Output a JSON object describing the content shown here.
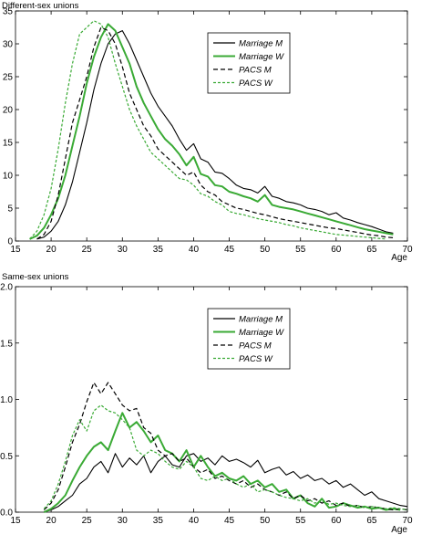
{
  "chart_data": [
    {
      "type": "line",
      "title": "Different-sex unions",
      "xlabel": "Age",
      "ylabel": "",
      "xlim": [
        15,
        70
      ],
      "ylim": [
        0,
        35
      ],
      "xticks": [
        15,
        20,
        25,
        30,
        35,
        40,
        45,
        50,
        55,
        60,
        65,
        70
      ],
      "yticks": [
        0,
        5,
        10,
        15,
        20,
        25,
        30,
        35
      ],
      "grid": false,
      "legend_position": "top-right",
      "series": [
        {
          "name": "Marriage M",
          "color": "#000000",
          "dash": "solid",
          "x": [
            18,
            19,
            20,
            21,
            22,
            23,
            24,
            25,
            26,
            27,
            28,
            29,
            30,
            31,
            32,
            33,
            34,
            35,
            36,
            37,
            38,
            39,
            40,
            41,
            42,
            43,
            44,
            45,
            46,
            47,
            48,
            49,
            50,
            51,
            52,
            53,
            54,
            55,
            56,
            57,
            58,
            59,
            60,
            61,
            62,
            63,
            64,
            65,
            66,
            67,
            68
          ],
          "y": [
            0.3,
            0.6,
            1.5,
            3.0,
            5.5,
            9.0,
            13.5,
            18.0,
            23.0,
            27.0,
            30.0,
            31.5,
            32.0,
            30.0,
            27.5,
            25.0,
            22.5,
            20.5,
            19.0,
            17.5,
            15.5,
            13.8,
            14.8,
            12.5,
            12.0,
            10.5,
            10.3,
            9.5,
            8.5,
            8.0,
            7.8,
            7.3,
            8.3,
            6.8,
            6.5,
            6.0,
            5.8,
            5.5,
            5.0,
            4.8,
            4.5,
            4.0,
            4.3,
            3.5,
            3.2,
            2.8,
            2.5,
            2.2,
            1.8,
            1.4,
            1.2
          ]
        },
        {
          "name": "Marriage W",
          "color": "#3aaa35",
          "dash": "solid",
          "x": [
            17,
            18,
            19,
            20,
            21,
            22,
            23,
            24,
            25,
            26,
            27,
            28,
            29,
            30,
            31,
            32,
            33,
            34,
            35,
            36,
            37,
            38,
            39,
            40,
            41,
            42,
            43,
            44,
            45,
            46,
            47,
            48,
            49,
            50,
            51,
            52,
            53,
            54,
            55,
            56,
            57,
            58,
            59,
            60,
            61,
            62,
            63,
            64,
            65,
            66,
            67,
            68
          ],
          "y": [
            0.3,
            0.8,
            2.0,
            4.0,
            6.5,
            10.0,
            14.5,
            19.0,
            24.0,
            28.0,
            31.0,
            33.0,
            32.0,
            29.5,
            27.0,
            23.5,
            21.0,
            19.0,
            17.0,
            15.5,
            14.5,
            13.2,
            11.5,
            12.8,
            10.2,
            9.8,
            8.5,
            8.3,
            7.5,
            7.2,
            6.8,
            6.5,
            6.0,
            7.0,
            5.5,
            5.2,
            5.0,
            4.8,
            4.5,
            4.2,
            3.9,
            3.6,
            3.3,
            3.0,
            2.7,
            2.4,
            2.1,
            1.8,
            1.6,
            1.4,
            1.2,
            1.0
          ]
        },
        {
          "name": "PACS M",
          "color": "#000000",
          "dash": "dashed",
          "x": [
            18,
            19,
            20,
            21,
            22,
            23,
            24,
            25,
            26,
            27,
            28,
            29,
            30,
            31,
            32,
            33,
            34,
            35,
            36,
            37,
            38,
            39,
            40,
            41,
            42,
            43,
            44,
            45,
            46,
            47,
            48,
            49,
            50,
            51,
            52,
            53,
            54,
            55,
            56,
            57,
            58,
            59,
            60,
            61,
            62,
            63,
            64,
            65,
            66,
            67,
            68
          ],
          "y": [
            0.3,
            1.0,
            3.0,
            7.0,
            12.5,
            18.0,
            21.5,
            25.0,
            29.5,
            32.5,
            32.0,
            30.0,
            26.5,
            22.5,
            20.0,
            17.5,
            16.0,
            14.0,
            13.0,
            12.0,
            11.0,
            10.0,
            10.5,
            8.5,
            7.5,
            7.0,
            6.0,
            5.5,
            5.0,
            4.8,
            4.5,
            4.2,
            4.0,
            3.7,
            3.4,
            3.2,
            3.0,
            2.8,
            2.6,
            2.4,
            2.2,
            2.0,
            1.9,
            1.7,
            1.5,
            1.3,
            1.1,
            0.9,
            0.8,
            0.6,
            0.5
          ]
        },
        {
          "name": "PACS W",
          "color": "#3aaa35",
          "dash": "dashed",
          "x": [
            17,
            18,
            19,
            20,
            21,
            22,
            23,
            24,
            25,
            26,
            27,
            28,
            29,
            30,
            31,
            32,
            33,
            34,
            35,
            36,
            37,
            38,
            39,
            40,
            41,
            42,
            43,
            44,
            45,
            46,
            47,
            48,
            49,
            50,
            51,
            52,
            53,
            54,
            55,
            56,
            57,
            58,
            59,
            60,
            61,
            62,
            63,
            64,
            65,
            66,
            67
          ],
          "y": [
            0.3,
            1.5,
            4.0,
            8.0,
            14.0,
            21.0,
            27.0,
            31.5,
            32.5,
            33.5,
            33.0,
            31.0,
            27.0,
            23.5,
            20.0,
            17.5,
            15.5,
            13.5,
            12.5,
            11.5,
            10.5,
            9.5,
            9.3,
            8.5,
            7.2,
            6.8,
            6.0,
            5.5,
            4.5,
            4.2,
            4.0,
            3.7,
            3.4,
            3.2,
            3.0,
            2.8,
            2.5,
            2.3,
            2.0,
            1.8,
            1.6,
            1.4,
            1.2,
            1.0,
            0.9,
            0.8,
            0.7,
            0.6,
            0.5,
            0.4,
            0.3
          ]
        }
      ]
    },
    {
      "type": "line",
      "title": "Same-sex unions",
      "xlabel": "Age",
      "ylabel": "",
      "xlim": [
        15,
        70
      ],
      "ylim": [
        0,
        2.0
      ],
      "xticks": [
        15,
        20,
        25,
        30,
        35,
        40,
        45,
        50,
        55,
        60,
        65,
        70
      ],
      "yticks": [
        0.0,
        0.5,
        1.0,
        1.5,
        2.0
      ],
      "grid": false,
      "legend_position": "top-right",
      "series": [
        {
          "name": "Marriage M",
          "color": "#000000",
          "dash": "solid",
          "x": [
            19,
            20,
            21,
            22,
            23,
            24,
            25,
            26,
            27,
            28,
            29,
            30,
            31,
            32,
            33,
            34,
            35,
            36,
            37,
            38,
            39,
            40,
            41,
            42,
            43,
            44,
            45,
            46,
            47,
            48,
            49,
            50,
            51,
            52,
            53,
            54,
            55,
            56,
            57,
            58,
            59,
            60,
            61,
            62,
            63,
            64,
            65,
            66,
            67,
            68,
            69,
            70
          ],
          "y": [
            0.0,
            0.02,
            0.05,
            0.1,
            0.15,
            0.25,
            0.3,
            0.4,
            0.45,
            0.35,
            0.52,
            0.4,
            0.48,
            0.42,
            0.5,
            0.35,
            0.45,
            0.5,
            0.42,
            0.4,
            0.5,
            0.52,
            0.45,
            0.48,
            0.42,
            0.5,
            0.45,
            0.47,
            0.44,
            0.4,
            0.46,
            0.35,
            0.38,
            0.4,
            0.33,
            0.36,
            0.3,
            0.33,
            0.28,
            0.3,
            0.25,
            0.28,
            0.22,
            0.25,
            0.2,
            0.15,
            0.18,
            0.12,
            0.1,
            0.08,
            0.06,
            0.05
          ]
        },
        {
          "name": "Marriage W",
          "color": "#3aaa35",
          "dash": "solid",
          "x": [
            19,
            20,
            21,
            22,
            23,
            24,
            25,
            26,
            27,
            28,
            29,
            30,
            31,
            32,
            33,
            34,
            35,
            36,
            37,
            38,
            39,
            40,
            41,
            42,
            43,
            44,
            45,
            46,
            47,
            48,
            49,
            50,
            51,
            52,
            53,
            54,
            55,
            56,
            57,
            58,
            59,
            60,
            61,
            62,
            63,
            64,
            65,
            66,
            67,
            68,
            69
          ],
          "y": [
            0.0,
            0.03,
            0.08,
            0.15,
            0.28,
            0.4,
            0.5,
            0.58,
            0.62,
            0.55,
            0.72,
            0.88,
            0.75,
            0.8,
            0.72,
            0.62,
            0.68,
            0.55,
            0.52,
            0.45,
            0.55,
            0.4,
            0.5,
            0.4,
            0.32,
            0.35,
            0.3,
            0.28,
            0.32,
            0.25,
            0.28,
            0.22,
            0.25,
            0.18,
            0.2,
            0.12,
            0.15,
            0.08,
            0.05,
            0.12,
            0.04,
            0.05,
            0.08,
            0.06,
            0.04,
            0.05,
            0.03,
            0.04,
            0.02,
            0.03,
            0.02
          ]
        },
        {
          "name": "PACS M",
          "color": "#000000",
          "dash": "dashed",
          "x": [
            19,
            20,
            21,
            22,
            23,
            24,
            25,
            26,
            27,
            28,
            29,
            30,
            31,
            32,
            33,
            34,
            35,
            36,
            37,
            38,
            39,
            40,
            41,
            42,
            43,
            44,
            45,
            46,
            47,
            48,
            49,
            50,
            51,
            52,
            53,
            54,
            55,
            56,
            57,
            58,
            59,
            60,
            61,
            62,
            63,
            64,
            65,
            66,
            67,
            68,
            69,
            70
          ],
          "y": [
            0.02,
            0.08,
            0.2,
            0.4,
            0.62,
            0.78,
            0.98,
            1.15,
            1.05,
            1.15,
            1.05,
            0.95,
            0.9,
            0.92,
            0.75,
            0.7,
            0.55,
            0.5,
            0.52,
            0.45,
            0.48,
            0.4,
            0.35,
            0.38,
            0.3,
            0.32,
            0.28,
            0.25,
            0.28,
            0.22,
            0.25,
            0.2,
            0.18,
            0.15,
            0.18,
            0.12,
            0.15,
            0.1,
            0.12,
            0.08,
            0.1,
            0.06,
            0.08,
            0.05,
            0.06,
            0.04,
            0.05,
            0.04,
            0.03,
            0.02,
            0.03,
            0.02
          ]
        },
        {
          "name": "PACS W",
          "color": "#3aaa35",
          "dash": "dashed",
          "x": [
            19,
            20,
            21,
            22,
            23,
            24,
            25,
            26,
            27,
            28,
            29,
            30,
            31,
            32,
            33,
            34,
            35,
            36,
            37,
            38,
            39,
            40,
            41,
            42,
            43,
            44,
            45,
            46,
            47,
            48,
            49,
            50,
            51,
            52,
            53,
            54,
            55,
            56,
            57,
            58,
            59,
            60,
            61,
            62,
            63,
            64,
            65,
            66,
            67,
            68,
            69,
            70
          ],
          "y": [
            0.03,
            0.1,
            0.25,
            0.45,
            0.68,
            0.82,
            0.72,
            0.9,
            0.95,
            0.9,
            0.88,
            0.82,
            0.75,
            0.55,
            0.5,
            0.55,
            0.52,
            0.45,
            0.4,
            0.38,
            0.45,
            0.4,
            0.3,
            0.28,
            0.32,
            0.28,
            0.3,
            0.25,
            0.22,
            0.25,
            0.18,
            0.2,
            0.18,
            0.15,
            0.13,
            0.12,
            0.1,
            0.12,
            0.08,
            0.1,
            0.07,
            0.08,
            0.06,
            0.05,
            0.06,
            0.04,
            0.05,
            0.04,
            0.03,
            0.04,
            0.03,
            0.02
          ]
        }
      ]
    }
  ]
}
